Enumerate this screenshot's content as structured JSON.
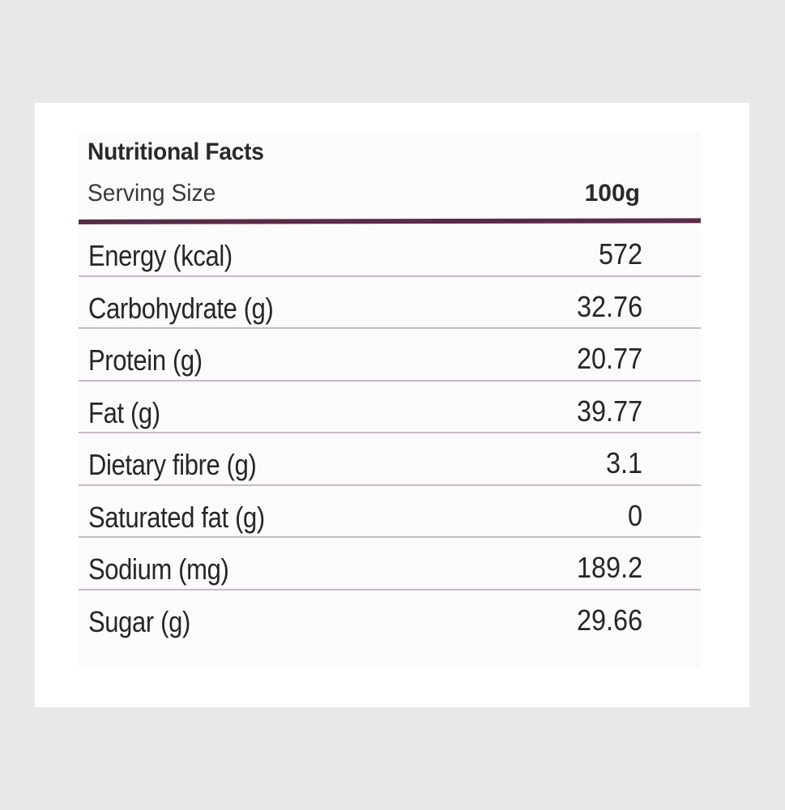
{
  "panel": {
    "title": "Nutritional Facts",
    "serving_label": "Serving Size",
    "serving_value": "100g"
  },
  "nutrients": [
    {
      "label": "Energy (kcal)",
      "value": "572"
    },
    {
      "label": "Carbohydrate (g)",
      "value": "32.76"
    },
    {
      "label": "Protein (g)",
      "value": "20.77"
    },
    {
      "label": "Fat (g)",
      "value": "39.77"
    },
    {
      "label": "Dietary fibre (g)",
      "value": "3.1"
    },
    {
      "label": "Saturated fat (g)",
      "value": "0"
    },
    {
      "label": "Sodium (mg)",
      "value": "189.2"
    },
    {
      "label": "Sugar (g)",
      "value": "29.66"
    }
  ],
  "colors": {
    "background": "#e8e8e8",
    "card": "#ffffff",
    "divider_thick": "#5a2b46",
    "divider_thin": "#c8b9c6",
    "text": "#262626"
  }
}
